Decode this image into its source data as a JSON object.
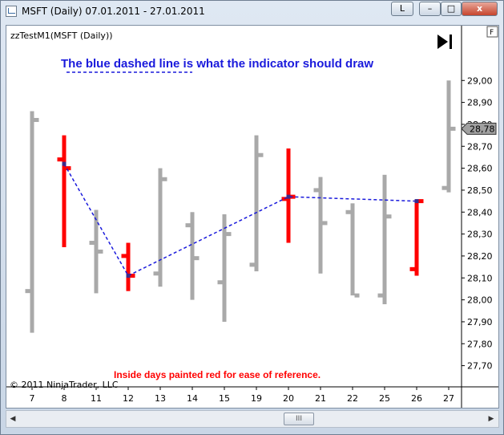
{
  "window": {
    "title": "MSFT (Daily)  07.01.2011 - 27.01.2011",
    "link_button": "L",
    "minimize": "–",
    "maximize": "□",
    "close": "x"
  },
  "panel": {
    "label": "zzTestM1(MSFT (Daily))",
    "f_button": "F",
    "copyright": "© 2011 NinjaTrader, LLC"
  },
  "annotations": {
    "top": "The blue dashed line is what the indicator should draw",
    "bottom": "Inside days painted red for ease of reference."
  },
  "scrollbar": {
    "thumb": "III",
    "left_arrow": "◀",
    "right_arrow": "▶"
  },
  "colors": {
    "normal_bar": "#a9a9a9",
    "inside_bar": "#ff0000",
    "indicator_line": "#1a1adc",
    "price_label_bg": "#a0a0a0"
  },
  "chart_data": {
    "type": "ohlc",
    "symbol": "MSFT",
    "interval": "Daily",
    "date_range": [
      "07.01.2011",
      "27.01.2011"
    ],
    "categories": [
      "7",
      "8",
      "11",
      "12",
      "13",
      "14",
      "15",
      "19",
      "20",
      "21",
      "22",
      "25",
      "26",
      "27"
    ],
    "bars": [
      {
        "x": "7",
        "open": 28.04,
        "high": 28.86,
        "low": 27.85,
        "close": 28.82,
        "inside": false
      },
      {
        "x": "8",
        "open": 28.64,
        "high": 28.75,
        "low": 28.24,
        "close": 28.6,
        "inside": true
      },
      {
        "x": "11",
        "open": 28.26,
        "high": 28.41,
        "low": 28.03,
        "close": 28.22,
        "inside": false
      },
      {
        "x": "12",
        "open": 28.2,
        "high": 28.26,
        "low": 28.04,
        "close": 28.11,
        "inside": true
      },
      {
        "x": "13",
        "open": 28.12,
        "high": 28.6,
        "low": 28.06,
        "close": 28.55,
        "inside": false
      },
      {
        "x": "14",
        "open": 28.34,
        "high": 28.4,
        "low": 28.0,
        "close": 28.19,
        "inside": false
      },
      {
        "x": "15",
        "open": 28.08,
        "high": 28.39,
        "low": 27.9,
        "close": 28.3,
        "inside": false
      },
      {
        "x": "19",
        "open": 28.16,
        "high": 28.75,
        "low": 28.13,
        "close": 28.66,
        "inside": false
      },
      {
        "x": "20",
        "open": 28.46,
        "high": 28.69,
        "low": 28.26,
        "close": 28.47,
        "inside": true
      },
      {
        "x": "21",
        "open": 28.5,
        "high": 28.56,
        "low": 28.12,
        "close": 28.35,
        "inside": false
      },
      {
        "x": "22",
        "open": 28.4,
        "high": 28.44,
        "low": 28.02,
        "close": 28.02,
        "inside": false
      },
      {
        "x": "25",
        "open": 28.02,
        "high": 28.57,
        "low": 27.98,
        "close": 28.38,
        "inside": false
      },
      {
        "x": "26",
        "open": 28.14,
        "high": 28.45,
        "low": 28.11,
        "close": 28.45,
        "inside": true
      },
      {
        "x": "27",
        "open": 28.51,
        "high": 29.0,
        "low": 28.49,
        "close": 28.78,
        "inside": false
      }
    ],
    "indicator_line": {
      "style": "dashed",
      "points": [
        {
          "x": "8",
          "y": 28.62
        },
        {
          "x": "12",
          "y": 28.11
        },
        {
          "x": "20",
          "y": 28.47
        },
        {
          "x": "26",
          "y": 28.45
        }
      ]
    },
    "y_ticks": [
      "29,00",
      "28,90",
      "28,80",
      "28,70",
      "28,60",
      "28,50",
      "28,40",
      "28,30",
      "28,20",
      "28,10",
      "28,00",
      "27,90",
      "27,80",
      "27,70"
    ],
    "y_values": [
      29.0,
      28.9,
      28.8,
      28.7,
      28.6,
      28.5,
      28.4,
      28.3,
      28.2,
      28.1,
      28.0,
      27.9,
      27.8,
      27.7
    ],
    "ylim": [
      27.64,
      29.14
    ],
    "last_price": 28.78,
    "last_price_label": "28,78"
  }
}
